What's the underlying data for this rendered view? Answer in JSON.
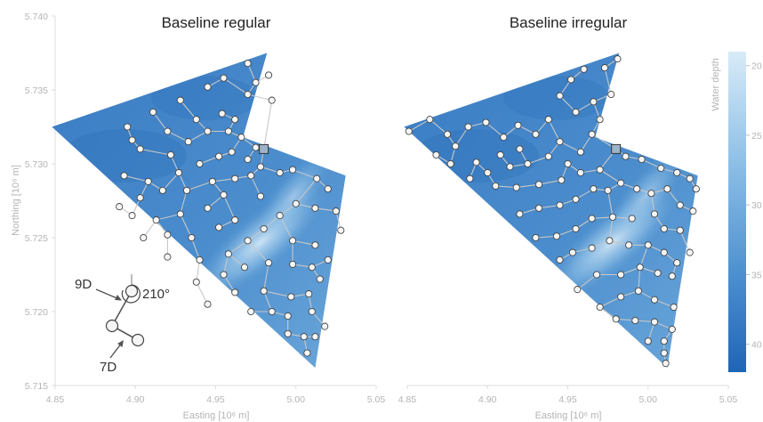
{
  "chart_data": [
    {
      "type": "scatter",
      "title": "Baseline regular",
      "xlabel": "Easting [10⁶ m]",
      "ylabel": "Northing [10⁶ m]",
      "xlim": [
        4.85,
        5.05
      ],
      "ylim": [
        5.715,
        5.74
      ],
      "xticks": [
        "4.85",
        "4.90",
        "4.95",
        "5.00",
        "5.05"
      ],
      "yticks": [
        "5.715",
        "5.720",
        "5.725",
        "5.730",
        "5.735",
        "5.740"
      ],
      "boundary": [
        [
          4.848,
          5.7325
        ],
        [
          4.982,
          5.7375
        ],
        [
          4.967,
          5.7318
        ],
        [
          5.031,
          5.7292
        ],
        [
          5.012,
          5.7162
        ]
      ],
      "substation": [
        4.98,
        5.731
      ],
      "turbines": [
        [
          4.97,
          5.7368
        ],
        [
          4.983,
          5.736
        ],
        [
          4.955,
          5.7358
        ],
        [
          4.945,
          5.7352
        ],
        [
          4.928,
          5.7343
        ],
        [
          4.911,
          5.7335
        ],
        [
          4.895,
          5.7325
        ],
        [
          4.898,
          5.7316
        ],
        [
          4.92,
          5.7322
        ],
        [
          4.938,
          5.733
        ],
        [
          4.954,
          5.7334
        ],
        [
          4.962,
          5.733
        ],
        [
          4.97,
          5.7347
        ],
        [
          4.975,
          5.7355
        ],
        [
          4.985,
          5.7343
        ],
        [
          4.903,
          5.731
        ],
        [
          4.922,
          5.7306
        ],
        [
          4.933,
          5.7315
        ],
        [
          4.945,
          5.7322
        ],
        [
          4.958,
          5.7322
        ],
        [
          4.966,
          5.7318
        ],
        [
          4.975,
          5.7311
        ],
        [
          4.893,
          5.7292
        ],
        [
          4.908,
          5.7288
        ],
        [
          4.927,
          5.7294
        ],
        [
          4.94,
          5.73
        ],
        [
          4.952,
          5.7305
        ],
        [
          4.96,
          5.7308
        ],
        [
          4.97,
          5.7303
        ],
        [
          4.89,
          5.7271
        ],
        [
          4.903,
          5.7277
        ],
        [
          4.917,
          5.7282
        ],
        [
          4.932,
          5.7282
        ],
        [
          4.948,
          5.7288
        ],
        [
          4.962,
          5.729
        ],
        [
          4.978,
          5.7298
        ],
        [
          4.898,
          5.7265
        ],
        [
          4.913,
          5.7262
        ],
        [
          4.928,
          5.7266
        ],
        [
          4.945,
          5.727
        ],
        [
          4.955,
          5.7279
        ],
        [
          4.972,
          5.7292
        ],
        [
          4.99,
          5.7294
        ],
        [
          4.998,
          5.7296
        ],
        [
          5.013,
          5.729
        ],
        [
          5.02,
          5.7283
        ],
        [
          4.905,
          5.725
        ],
        [
          4.92,
          5.7252
        ],
        [
          4.935,
          5.725
        ],
        [
          4.952,
          5.7257
        ],
        [
          4.962,
          5.7262
        ],
        [
          4.978,
          5.7278
        ],
        [
          4.99,
          5.7265
        ],
        [
          5.0,
          5.7273
        ],
        [
          5.012,
          5.727
        ],
        [
          5.025,
          5.7268
        ],
        [
          5.028,
          5.7255
        ],
        [
          4.92,
          5.7237
        ],
        [
          4.94,
          5.7235
        ],
        [
          4.958,
          5.7239
        ],
        [
          4.97,
          5.7248
        ],
        [
          4.98,
          5.7256
        ],
        [
          4.998,
          5.7248
        ],
        [
          5.012,
          5.7245
        ],
        [
          5.02,
          5.7235
        ],
        [
          4.938,
          5.722
        ],
        [
          4.955,
          5.7225
        ],
        [
          4.968,
          5.723
        ],
        [
          4.983,
          5.7233
        ],
        [
          4.998,
          5.7232
        ],
        [
          5.01,
          5.723
        ],
        [
          5.015,
          5.7222
        ],
        [
          4.945,
          5.7205
        ],
        [
          4.962,
          5.7213
        ],
        [
          4.98,
          5.7214
        ],
        [
          4.997,
          5.721
        ],
        [
          5.008,
          5.7212
        ],
        [
          4.972,
          5.72
        ],
        [
          4.985,
          5.72
        ],
        [
          4.995,
          5.7197
        ],
        [
          5.01,
          5.72
        ],
        [
          5.018,
          5.719
        ],
        [
          4.995,
          5.7185
        ],
        [
          5.005,
          5.7183
        ],
        [
          5.012,
          5.7183
        ],
        [
          5.007,
          5.7172
        ]
      ]
    },
    {
      "type": "scatter",
      "title": "Baseline irregular",
      "xlabel": "Easting [10⁶ m]",
      "ylabel": "",
      "xlim": [
        4.85,
        5.05
      ],
      "ylim": [
        5.715,
        5.74
      ],
      "xticks": [
        "4.85",
        "4.90",
        "4.95",
        "5.00",
        "5.05"
      ],
      "yticks": [],
      "boundary": [
        [
          4.848,
          5.7325
        ],
        [
          4.982,
          5.7375
        ],
        [
          4.967,
          5.7318
        ],
        [
          5.031,
          5.7292
        ],
        [
          5.012,
          5.7162
        ]
      ],
      "substation": [
        4.98,
        5.731
      ],
      "turbines": [
        [
          4.851,
          5.7322
        ],
        [
          4.864,
          5.733
        ],
        [
          4.875,
          5.732
        ],
        [
          4.868,
          5.7306
        ],
        [
          4.88,
          5.7312
        ],
        [
          4.888,
          5.7325
        ],
        [
          4.899,
          5.7328
        ],
        [
          4.91,
          5.7318
        ],
        [
          4.919,
          5.7326
        ],
        [
          4.908,
          5.7306
        ],
        [
          4.893,
          5.7301
        ],
        [
          4.877,
          5.73
        ],
        [
          4.889,
          5.729
        ],
        [
          4.9,
          5.7294
        ],
        [
          4.914,
          5.7298
        ],
        [
          4.92,
          5.731
        ],
        [
          4.93,
          5.732
        ],
        [
          4.938,
          5.733
        ],
        [
          4.945,
          5.7315
        ],
        [
          4.925,
          5.73
        ],
        [
          4.938,
          5.7305
        ],
        [
          4.95,
          5.73
        ],
        [
          4.958,
          5.7308
        ],
        [
          4.965,
          5.732
        ],
        [
          4.97,
          5.733
        ],
        [
          4.977,
          5.7347
        ],
        [
          4.966,
          5.7342
        ],
        [
          4.955,
          5.7335
        ],
        [
          4.945,
          5.7346
        ],
        [
          4.952,
          5.7357
        ],
        [
          4.96,
          5.7364
        ],
        [
          4.973,
          5.7365
        ],
        [
          4.981,
          5.7371
        ],
        [
          4.905,
          5.7285
        ],
        [
          4.918,
          5.7284
        ],
        [
          4.932,
          5.7286
        ],
        [
          4.946,
          5.7289
        ],
        [
          4.958,
          5.7294
        ],
        [
          4.97,
          5.7296
        ],
        [
          4.986,
          5.7305
        ],
        [
          4.996,
          5.7303
        ],
        [
          5.008,
          5.7297
        ],
        [
          5.018,
          5.7294
        ],
        [
          5.026,
          5.729
        ],
        [
          5.03,
          5.7283
        ],
        [
          4.92,
          5.7266
        ],
        [
          4.932,
          5.727
        ],
        [
          4.945,
          5.7272
        ],
        [
          4.955,
          5.7276
        ],
        [
          4.966,
          5.7283
        ],
        [
          4.975,
          5.7282
        ],
        [
          4.983,
          5.7287
        ],
        [
          4.993,
          5.7283
        ],
        [
          5.002,
          5.728
        ],
        [
          5.012,
          5.7283
        ],
        [
          5.02,
          5.7272
        ],
        [
          5.028,
          5.7268
        ],
        [
          4.93,
          5.725
        ],
        [
          4.943,
          5.7251
        ],
        [
          4.955,
          5.7256
        ],
        [
          4.965,
          5.7263
        ],
        [
          4.978,
          5.7264
        ],
        [
          4.99,
          5.7263
        ],
        [
          5.004,
          5.7266
        ],
        [
          5.01,
          5.7256
        ],
        [
          5.02,
          5.7255
        ],
        [
          5.026,
          5.724
        ],
        [
          4.945,
          5.7235
        ],
        [
          4.953,
          5.724
        ],
        [
          4.965,
          5.7243
        ],
        [
          4.976,
          5.7248
        ],
        [
          4.988,
          5.7245
        ],
        [
          5.0,
          5.7245
        ],
        [
          5.01,
          5.724
        ],
        [
          5.018,
          5.7233
        ],
        [
          4.956,
          5.7215
        ],
        [
          4.968,
          5.7225
        ],
        [
          4.983,
          5.7225
        ],
        [
          4.995,
          5.723
        ],
        [
          5.006,
          5.7226
        ],
        [
          5.015,
          5.7224
        ],
        [
          4.97,
          5.7203
        ],
        [
          4.983,
          5.721
        ],
        [
          4.994,
          5.7214
        ],
        [
          5.004,
          5.7208
        ],
        [
          5.016,
          5.7203
        ],
        [
          4.98,
          5.7195
        ],
        [
          4.992,
          5.7194
        ],
        [
          5.004,
          5.7193
        ],
        [
          5.015,
          5.7188
        ],
        [
          5.0,
          5.718
        ],
        [
          5.01,
          5.718
        ],
        [
          5.01,
          5.7172
        ],
        [
          5.011,
          5.7165
        ]
      ]
    }
  ],
  "colorbar": {
    "label": "Water depth",
    "ticks": [
      "20",
      "25",
      "30",
      "35",
      "40"
    ],
    "range": [
      19,
      42
    ],
    "light": "#d3e8f7",
    "dark": "#2168b8"
  },
  "inset": {
    "label_9d": "9D",
    "label_7d": "7D",
    "label_angle": "210°"
  },
  "colors": {
    "sea_dark": "#3b7dc4",
    "sea_mid": "#5b98d2",
    "sea_light": "#bcd9ef",
    "cable": "#c8c8c8",
    "turbine_fill": "#f6f6f6",
    "turbine_edge": "#444444"
  }
}
